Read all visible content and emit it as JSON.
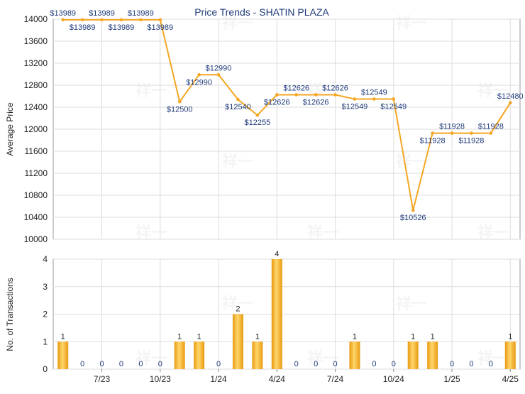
{
  "chart_data": [
    {
      "type": "line",
      "title": "Price Trends - SHATIN PLAZA",
      "ylabel": "Average Price",
      "xlabel": "",
      "ylim": [
        10000,
        14000
      ],
      "yticks": [
        10000,
        10400,
        10800,
        11200,
        11600,
        12000,
        12400,
        12800,
        13200,
        13600,
        14000
      ],
      "x": [
        "2023-05",
        "2023-06",
        "2023-07",
        "2023-08",
        "2023-09",
        "2023-10",
        "2023-11",
        "2023-12",
        "2024-01",
        "2024-02",
        "2024-03",
        "2024-04",
        "2024-05",
        "2024-06",
        "2024-07",
        "2024-08",
        "2024-09",
        "2024-10",
        "2024-11",
        "2024-12",
        "2025-01",
        "2025-02",
        "2025-03",
        "2025-04"
      ],
      "values": [
        13989,
        13989,
        13989,
        13989,
        13989,
        13989,
        12500,
        12990,
        12990,
        12540,
        12255,
        12626,
        12626,
        12626,
        12626,
        12549,
        12549,
        12549,
        10526,
        11928,
        11928,
        11928,
        11928,
        12480
      ],
      "labels": [
        "$13989",
        "$13989",
        "$13989",
        "$13989",
        "$13989",
        "$13989",
        "$12500",
        "$12990",
        "$12990",
        "$12540",
        "$12255",
        "$12626",
        "$12626",
        "$12626",
        "$12626",
        "$12549",
        "$12549",
        "$12549",
        "$10526",
        "$11928",
        "$11928",
        "$11928",
        "$11928",
        "$12480"
      ],
      "color": "#f5a623",
      "grid": true
    },
    {
      "type": "bar",
      "title": "",
      "ylabel": "No. of Transactions",
      "xlabel": "",
      "ylim": [
        0,
        4
      ],
      "yticks": [
        0,
        1,
        2,
        3,
        4
      ],
      "x": [
        "2023-05",
        "2023-06",
        "2023-07",
        "2023-08",
        "2023-09",
        "2023-10",
        "2023-11",
        "2023-12",
        "2024-01",
        "2024-02",
        "2024-03",
        "2024-04",
        "2024-05",
        "2024-06",
        "2024-07",
        "2024-08",
        "2024-09",
        "2024-10",
        "2024-11",
        "2024-12",
        "2025-01",
        "2025-02",
        "2025-03",
        "2025-04"
      ],
      "values": [
        1,
        0,
        0,
        0,
        0,
        0,
        1,
        1,
        0,
        2,
        1,
        4,
        0,
        0,
        0,
        1,
        0,
        0,
        1,
        1,
        0,
        0,
        0,
        1
      ],
      "xtick_labels": [
        "7/23",
        "10/23",
        "1/24",
        "4/24",
        "7/24",
        "10/24",
        "1/25",
        "4/25"
      ],
      "xtick_months": [
        "2023-07",
        "2023-10",
        "2024-01",
        "2024-04",
        "2024-07",
        "2024-10",
        "2025-01",
        "2025-04"
      ],
      "color": "#f5a623",
      "grid": true
    }
  ],
  "watermark": "祥一"
}
